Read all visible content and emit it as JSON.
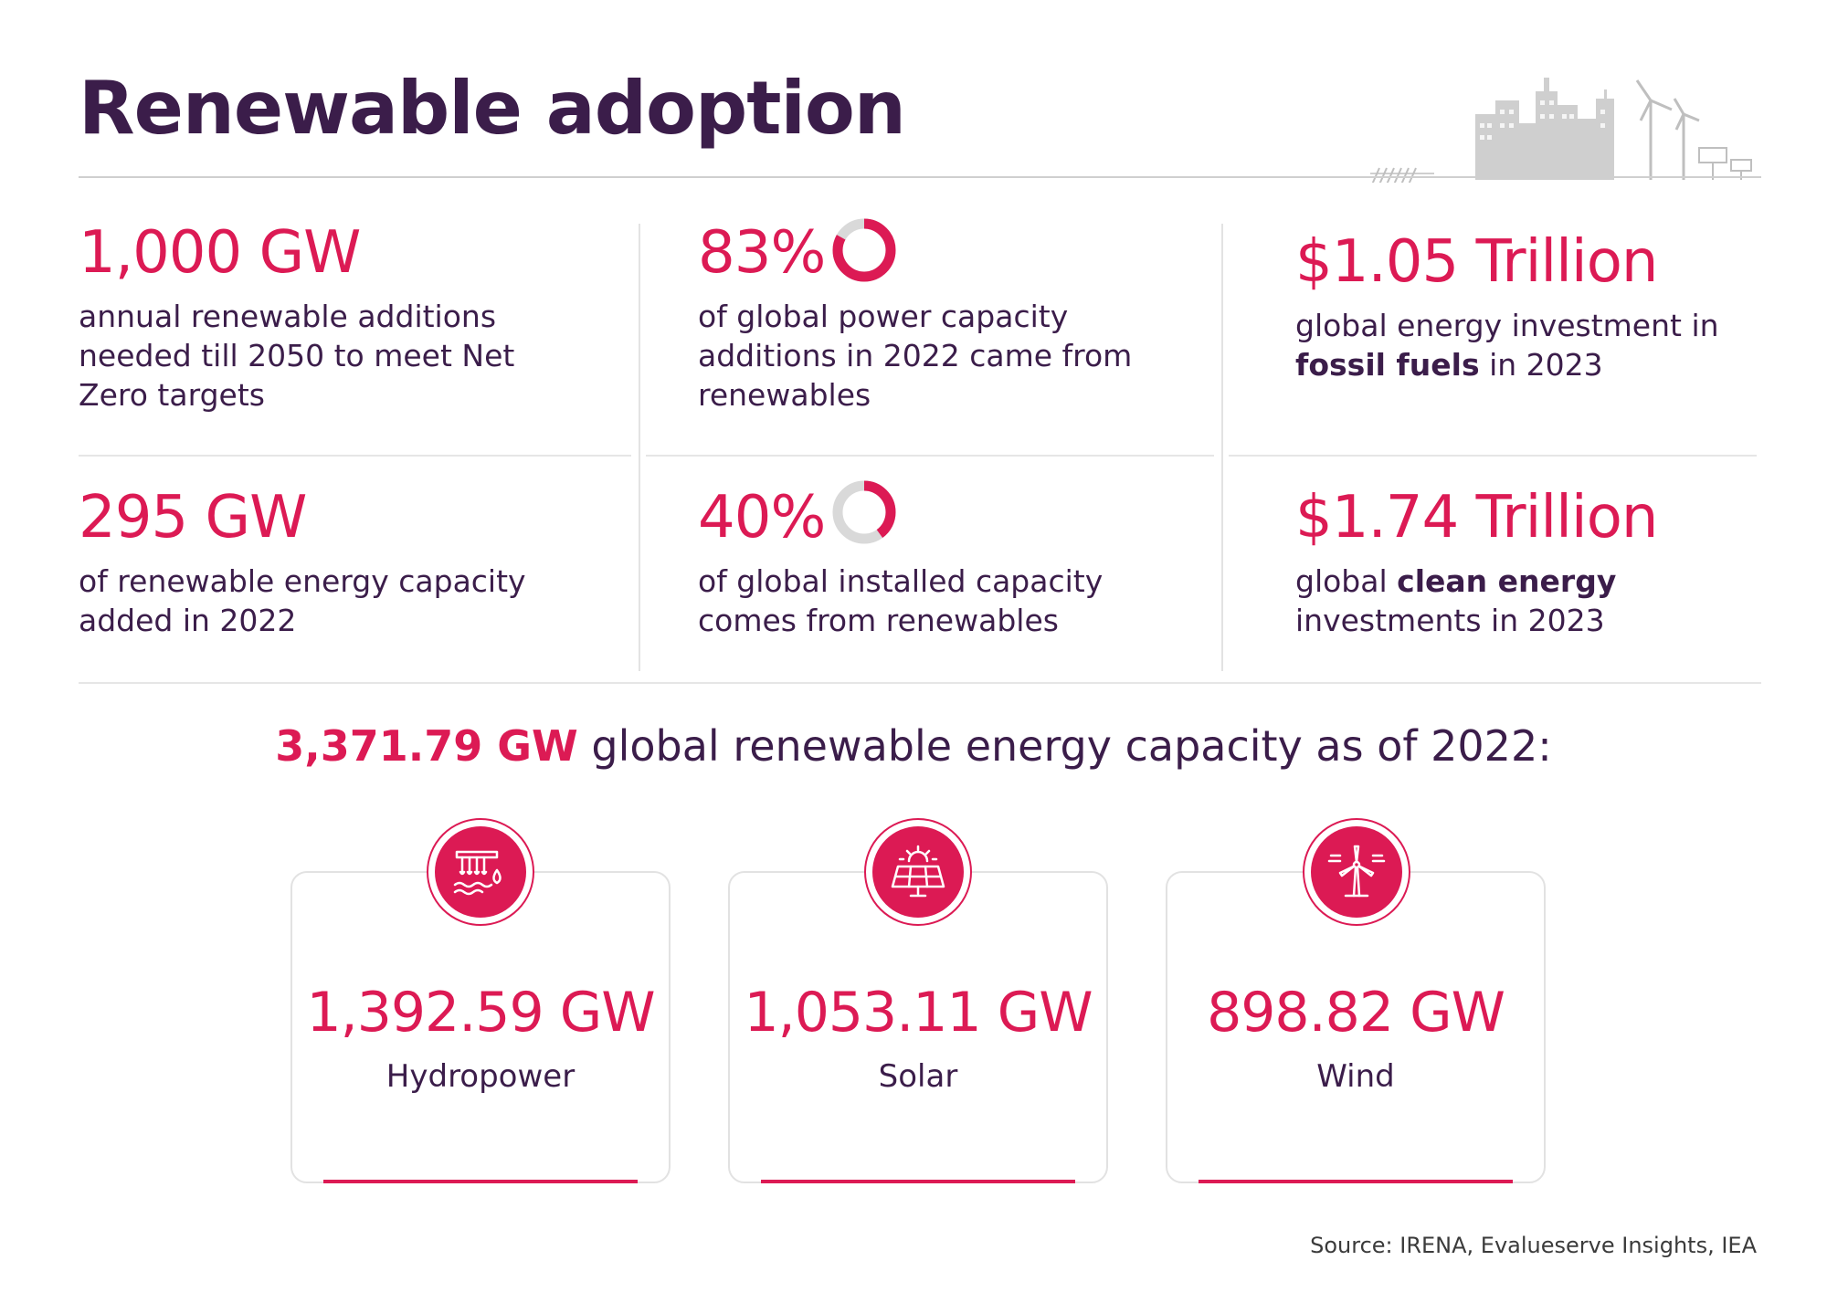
{
  "title": "Renewable adoption",
  "colors": {
    "accent": "#dc1a54",
    "heading": "#3b1d4a",
    "ring_track": "#d9d9d9"
  },
  "stats": [
    {
      "value": "1,000 GW",
      "desc": "annual renewable additions needed till 2050 to meet Net Zero targets"
    },
    {
      "value": "83%",
      "fraction": 0.83,
      "desc": "of global power capacity additions in 2022 came from renewables"
    },
    {
      "value": "$1.05 Trillion",
      "desc_pre": "global energy investment in",
      "desc_bold": "fossil fuels",
      "desc_post": "in 2023"
    },
    {
      "value": "295 GW",
      "desc": "of renewable energy capacity added in 2022"
    },
    {
      "value": "40%",
      "fraction": 0.4,
      "desc": "of global installed capacity comes from renewables"
    },
    {
      "value": "$1.74 Trillion",
      "desc_pre": "global",
      "desc_bold": "clean energy",
      "desc_post": "investments in 2023"
    }
  ],
  "headline": {
    "number": "3,371.79 GW",
    "text": "global renewable energy capacity as of 2022:"
  },
  "sources": [
    {
      "value": "1,392.59 GW",
      "label": "Hydropower",
      "icon": "hydropower-icon"
    },
    {
      "value": "1,053.11 GW",
      "label": "Solar",
      "icon": "solar-panel-icon"
    },
    {
      "value": "898.82 GW",
      "label": "Wind",
      "icon": "wind-turbine-icon"
    }
  ],
  "source_note": "Source: IRENA, Evalueserve Insights, IEA"
}
